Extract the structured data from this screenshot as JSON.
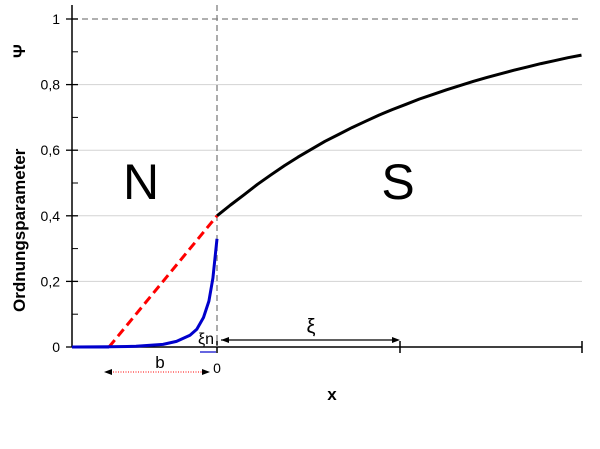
{
  "chart_data": {
    "type": "line",
    "ylabel": "Ordnungsparameter",
    "ylabel_symbol": "Ψ",
    "xlabel": "x",
    "ylim": [
      0,
      1
    ],
    "y_ticks": [
      "0",
      "0,2",
      "0,4",
      "0,6",
      "0,8",
      "1"
    ],
    "grid": true,
    "regions": [
      "N",
      "S"
    ],
    "series": [
      {
        "color": "#000000",
        "style": "solid",
        "x": [
          0,
          0.5,
          1,
          1.5,
          2,
          2.5,
          3,
          3.5,
          4,
          4.5,
          5,
          5.5,
          6,
          6.5,
          7,
          7.5,
          8,
          8.5,
          9,
          9.5,
          10,
          10.5,
          11,
          11.5,
          12,
          12.5,
          13,
          13.5
        ],
        "values": [
          0.4,
          0.433,
          0.464,
          0.496,
          0.525,
          0.553,
          0.579,
          0.603,
          0.627,
          0.648,
          0.669,
          0.688,
          0.707,
          0.724,
          0.74,
          0.756,
          0.77,
          0.784,
          0.797,
          0.81,
          0.822,
          0.833,
          0.844,
          0.854,
          0.864,
          0.873,
          0.882,
          0.89
        ]
      },
      {
        "color": "#ff0000",
        "style": "dashed",
        "x": [
          -4.0,
          0
        ],
        "values": [
          0,
          0.4
        ]
      },
      {
        "color": "#0000cc",
        "style": "solid",
        "x": [
          -5.3,
          -4.0,
          -3.0,
          -2.0,
          -1.5,
          -1.0,
          -0.75,
          -0.5,
          -0.3,
          -0.15,
          0
        ],
        "values": [
          0,
          0.0005,
          0.002,
          0.008,
          0.017,
          0.036,
          0.054,
          0.09,
          0.14,
          0.21,
          0.33
        ]
      }
    ],
    "annotations": {
      "xi": "ξ",
      "xi_n": "ξn",
      "b": "b",
      "zero": "0"
    },
    "colors": {
      "black_curve": "#000000",
      "red_dashed": "#ff0000",
      "blue_curve": "#0000cc",
      "grid": "#d3d3d3"
    }
  }
}
